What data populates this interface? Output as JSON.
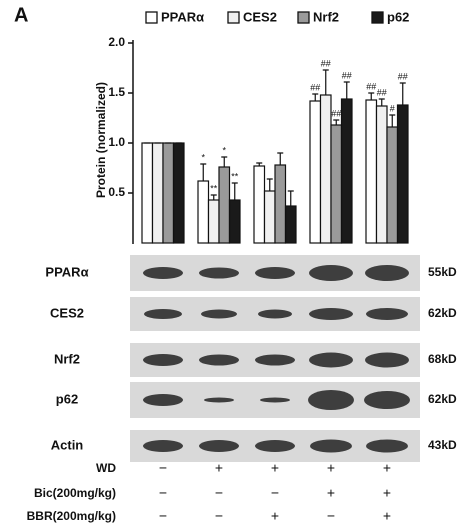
{
  "panel_label": "A",
  "chart_data": {
    "type": "bar",
    "y_label": "Protein (normalized)",
    "categories": [
      null,
      null,
      null,
      null,
      null
    ],
    "ylim": [
      0,
      2
    ],
    "yticks": [
      {
        "value": 2,
        "label": "2.0"
      },
      1.5,
      {
        "value": 1,
        "label": "1.0"
      },
      0.5
    ],
    "series": [
      {
        "name": "PPARα",
        "color": "#ffffff",
        "values": [
          1,
          0.62,
          0.77,
          1.42,
          1.43
        ],
        "errors": [
          0,
          0.17,
          0.03,
          0.07,
          0.07
        ],
        "marks": [
          null,
          "*",
          null,
          "##",
          "##"
        ]
      },
      {
        "name": "CES2",
        "color": "#f0f0f0",
        "values": [
          1,
          0.43,
          0.52,
          1.48,
          1.37
        ],
        "errors": [
          0,
          0.05,
          0.12,
          0.25,
          0.07
        ],
        "marks": [
          null,
          "**",
          null,
          "##",
          "##"
        ]
      },
      {
        "name": "Nrf2",
        "color": "#9a9a9a",
        "values": [
          1,
          0.76,
          0.78,
          1.18,
          1.16
        ],
        "errors": [
          0,
          0.1,
          0.12,
          0.05,
          0.12
        ],
        "marks": [
          null,
          "*",
          null,
          "##",
          "#"
        ]
      },
      {
        "name": "p62",
        "color": "#1a1a1a",
        "values": [
          1,
          0.43,
          0.37,
          1.44,
          1.38
        ],
        "errors": [
          0,
          0.17,
          0.15,
          0.17,
          0.22
        ],
        "marks": [
          null,
          "**",
          null,
          "##",
          "##"
        ]
      }
    ]
  },
  "blot": {
    "rows": [
      {
        "label": "PPARα",
        "size": "55kD"
      },
      {
        "label": "CES2",
        "size": "62kD"
      },
      {
        "label": "Nrf2",
        "size": "68kD"
      },
      {
        "label": "p62",
        "size": "62kD"
      },
      {
        "label": "Actin",
        "size": "43kD"
      }
    ]
  },
  "treatments": [
    {
      "label": "WD",
      "signs": [
        "−",
        "+",
        "+",
        "+",
        "+"
      ]
    },
    {
      "label": "Bic(200mg/kg)",
      "signs": [
        "−",
        "−",
        "−",
        "+",
        "+"
      ]
    },
    {
      "label": "BBR(200mg/kg)",
      "signs": [
        "−",
        "−",
        "+",
        "−",
        "+"
      ]
    }
  ]
}
